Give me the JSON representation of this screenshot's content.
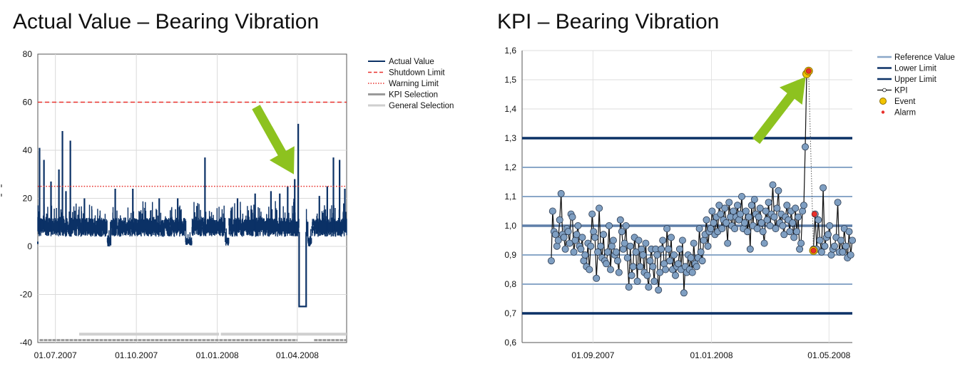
{
  "titles": {
    "left": "Actual Value – Bearing Vibration",
    "right": "KPI – Bearing Vibration"
  },
  "colors": {
    "actual": "#0b3166",
    "shutdown": "#e8312c",
    "warning": "#e8312c",
    "kpi_selection": "#9a9a9a",
    "general_selection": "#cfcfcf",
    "reference": "#8aa7c8",
    "limit": "#0b3166",
    "kpi_marker": "#7f9fc2",
    "event": "#f2c400",
    "alarm": "#e8312c",
    "arrow": "#8dc21f",
    "grid": "#d9d9d9"
  },
  "chart_data": [
    {
      "type": "line",
      "title": "Actual Value – Bearing Vibration",
      "xlabel": "",
      "ylabel": "",
      "ylim": [
        -40,
        80
      ],
      "yticks": [
        -40,
        -20,
        0,
        20,
        40,
        60,
        80
      ],
      "xlim": [
        "2007-06-11",
        "2008-05-27"
      ],
      "xticks": [
        {
          "date": "2007-07-01",
          "label": "01.07.2007"
        },
        {
          "date": "2007-10-01",
          "label": "01.10.2007"
        },
        {
          "date": "2008-01-01",
          "label": "01.01.2008"
        },
        {
          "date": "2008-04-01",
          "label": "01.04.2008"
        }
      ],
      "grid": true,
      "legend_position": "right",
      "legend": [
        {
          "label": "Actual Value",
          "style": "solid"
        },
        {
          "label": "Shutdown Limit",
          "style": "dashed"
        },
        {
          "label": "Warning Limit",
          "style": "dotted"
        },
        {
          "label": "KPI  Selection",
          "style": "solid-gray"
        },
        {
          "label": "General Selection",
          "style": "solid-lightgray"
        }
      ],
      "shutdown_limit": 60,
      "warning_limit": 25,
      "baseline_band": [
        4,
        12
      ],
      "spikes": [
        {
          "date": "2007-06-13",
          "value": 41
        },
        {
          "date": "2007-06-18",
          "value": 36
        },
        {
          "date": "2007-06-26",
          "value": 27
        },
        {
          "date": "2007-07-05",
          "value": 32
        },
        {
          "date": "2007-07-09",
          "value": 48
        },
        {
          "date": "2007-07-13",
          "value": 23
        },
        {
          "date": "2007-07-18",
          "value": 44
        },
        {
          "date": "2007-08-03",
          "value": 20
        },
        {
          "date": "2007-09-07",
          "value": 24
        },
        {
          "date": "2007-09-27",
          "value": 24
        },
        {
          "date": "2007-10-27",
          "value": 20
        },
        {
          "date": "2007-11-17",
          "value": 20
        },
        {
          "date": "2007-12-18",
          "value": 37
        },
        {
          "date": "2008-01-24",
          "value": 20
        },
        {
          "date": "2008-02-13",
          "value": 22
        },
        {
          "date": "2008-03-02",
          "value": 23
        },
        {
          "date": "2008-03-12",
          "value": 22
        },
        {
          "date": "2008-03-21",
          "value": 25
        },
        {
          "date": "2008-03-29",
          "value": 28
        },
        {
          "date": "2008-04-02",
          "value": 51
        },
        {
          "date": "2008-04-26",
          "value": 21
        },
        {
          "date": "2008-05-05",
          "value": 25
        },
        {
          "date": "2008-05-12",
          "value": 37
        },
        {
          "date": "2008-05-19",
          "value": 36
        },
        {
          "date": "2008-05-25",
          "value": 24
        }
      ],
      "dropout": {
        "start": "2008-04-03",
        "end": "2008-04-11",
        "value": -25
      },
      "gaps": [
        {
          "start": "2007-08-29",
          "end": "2007-09-02"
        },
        {
          "start": "2007-11-26",
          "end": "2007-12-03"
        },
        {
          "start": "2008-01-10",
          "end": "2008-01-14"
        },
        {
          "start": "2008-04-13",
          "end": "2008-04-17"
        }
      ],
      "general_selection_segments": [
        {
          "start": "2007-07-28",
          "end": "2008-01-03",
          "y": -36.5
        },
        {
          "start": "2008-01-05",
          "end": "2008-05-27",
          "y": -36.5
        }
      ],
      "kpi_selection_segments": [
        {
          "start": "2007-06-13",
          "end": "2008-04-01",
          "y": -39
        },
        {
          "start": "2008-04-20",
          "end": "2008-05-27",
          "y": -39
        }
      ],
      "annotation_arrow": {
        "from": {
          "date": "2008-02-14",
          "value": 58
        },
        "to": {
          "date": "2008-03-28",
          "value": 30
        }
      }
    },
    {
      "type": "line",
      "title": "KPI – Bearing Vibration",
      "xlabel": "",
      "ylabel": "",
      "ylim": [
        0.6,
        1.6
      ],
      "yticks": [
        0.6,
        0.7,
        0.8,
        0.9,
        1.0,
        1.1,
        1.2,
        1.3,
        1.4,
        1.5,
        1.6
      ],
      "ytick_labels": [
        "0,6",
        "0,7",
        "0,8",
        "0,9",
        "1,0",
        "1,1",
        "1,2",
        "1,3",
        "1,4",
        "1,5",
        "1,6"
      ],
      "xlim": [
        "2007-06-20",
        "2008-05-25"
      ],
      "xticks": [
        {
          "date": "2007-09-01",
          "label": "01.09.2007"
        },
        {
          "date": "2008-01-01",
          "label": "01.01.2008"
        },
        {
          "date": "2008-05-01",
          "label": "01.05.2008"
        }
      ],
      "grid": true,
      "legend_position": "right",
      "legend": [
        {
          "label": "Reference Value",
          "symbol": "line-light"
        },
        {
          "label": "Lower Limit",
          "symbol": "line-dark"
        },
        {
          "label": "Upper Limit",
          "symbol": "line-dark"
        },
        {
          "label": "KPI",
          "symbol": "line-marker"
        },
        {
          "label": "Event",
          "symbol": "circle-yellow"
        },
        {
          "label": "Alarm",
          "symbol": "dot-red"
        }
      ],
      "reference_value": 1.0,
      "lower_limit": 0.7,
      "upper_limit": 1.3,
      "reference_bands": [
        0.8,
        0.9,
        1.1,
        1.2
      ],
      "kpi_series_1": {
        "start": "2007-07-20",
        "end": "2008-04-08",
        "values": [
          0.88,
          1.05,
          0.98,
          0.97,
          0.93,
          0.95,
          1.02,
          1.11,
          0.97,
          0.96,
          0.92,
          0.99,
          0.98,
          0.94,
          1.04,
          1.03,
          0.91,
          0.95,
          0.97,
          1.0,
          0.93,
          0.92,
          0.96,
          0.88,
          0.9,
          0.86,
          0.94,
          0.85,
          0.93,
          1.04,
          0.98,
          0.96,
          0.82,
          0.91,
          1.06,
          0.93,
          0.89,
          0.97,
          0.88,
          0.87,
          0.91,
          1.0,
          0.85,
          0.93,
          0.95,
          0.9,
          0.91,
          0.88,
          0.84,
          1.02,
          0.98,
          0.92,
          0.94,
          1.0,
          0.89,
          0.79,
          0.93,
          0.83,
          0.86,
          0.96,
          0.91,
          0.81,
          0.95,
          0.86,
          0.92,
          0.9,
          0.84,
          0.94,
          0.83,
          0.79,
          0.88,
          0.92,
          0.86,
          0.81,
          0.92,
          0.9,
          0.78,
          0.84,
          0.92,
          0.95,
          0.87,
          0.85,
          0.99,
          0.92,
          0.88,
          0.96,
          0.85,
          0.9,
          0.83,
          0.86,
          0.87,
          0.92,
          0.85,
          0.95,
          0.77,
          0.86,
          0.84,
          0.9,
          0.85,
          0.89,
          0.84,
          0.94,
          0.87,
          0.86,
          0.89,
          0.99,
          0.91,
          0.88,
          0.95,
          0.97,
          1.02,
          0.93,
          0.98,
          0.99,
          1.05,
          1.01,
          0.97,
          1.03,
          0.98,
          1.07,
          1.04,
          0.99,
          1.02,
          1.06,
          1.01,
          0.94,
          1.08,
          1.03,
          1.0,
          1.05,
          0.99,
          1.03,
          1.07,
          1.02,
          1.04,
          1.1,
          0.99,
          1.01,
          1.05,
          0.98,
          1.03,
          0.92,
          1.07,
          1.0,
          1.09,
          1.04,
          0.99,
          1.03,
          1.06,
          1.01,
          0.98,
          0.94,
          1.05,
          1.02,
          1.08,
          1.0,
          1.04,
          1.14,
          1.03,
          0.99,
          1.06,
          1.12,
          1.01,
          1.04,
          1.0,
          0.97,
          1.03,
          1.07,
          1.02,
          0.98,
          1.05,
          1.01,
          0.96,
          1.06,
          0.98,
          1.03,
          0.92,
          0.94,
          1.05,
          1.07,
          1.27,
          1.52
        ]
      },
      "kpi_series_2": {
        "start": "2008-04-15",
        "end": "2008-05-25",
        "values": [
          0.92,
          1.04,
          0.92,
          1.02,
          0.95,
          0.91,
          1.13,
          0.93,
          0.96,
          0.97,
          1.0,
          0.9,
          0.92,
          0.93,
          0.96,
          1.08,
          0.91,
          0.95,
          0.91,
          0.99,
          0.93,
          0.89,
          0.98,
          0.9,
          0.95
        ]
      },
      "events": [
        {
          "date": "2008-04-08",
          "value": 1.52
        },
        {
          "date": "2008-04-10",
          "value": 1.53
        },
        {
          "date": "2008-04-15",
          "value": 0.915
        }
      ],
      "alarms": [
        {
          "date": "2008-04-10",
          "value": 1.53
        },
        {
          "date": "2008-04-16",
          "value": 1.04
        },
        {
          "date": "2008-04-15",
          "value": 0.915
        }
      ],
      "event_link": {
        "from": {
          "date": "2008-04-10",
          "value": 1.53
        },
        "to": {
          "date": "2008-04-15",
          "value": 0.915
        }
      },
      "annotation_arrow": {
        "from": {
          "date": "2008-02-16",
          "value": 1.29
        },
        "to": {
          "date": "2008-04-07",
          "value": 1.51
        }
      }
    }
  ]
}
